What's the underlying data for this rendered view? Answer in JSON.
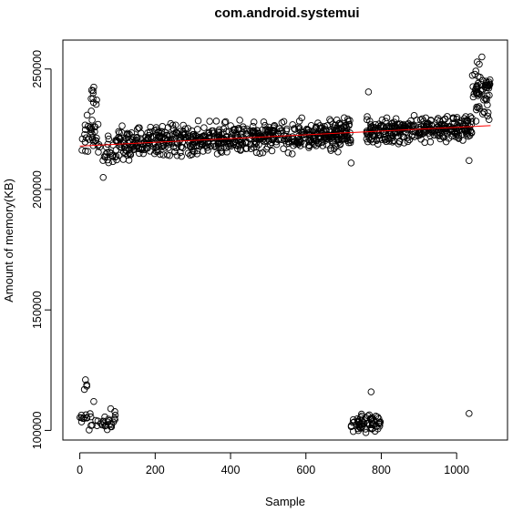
{
  "chart_data": {
    "type": "scatter",
    "title": "com.android.systemui",
    "xlabel": "Sample",
    "ylabel": "Amount of memory(KB)",
    "xlim": [
      -45,
      1135
    ],
    "ylim": [
      96000,
      262000
    ],
    "x_ticks": [
      0,
      200,
      400,
      600,
      800,
      1000
    ],
    "y_ticks": [
      100000,
      150000,
      200000,
      250000
    ],
    "grid": false,
    "point_color": "#000000",
    "trend_color": "#ff0000",
    "trend_line": {
      "x": [
        0,
        1090
      ],
      "y": [
        218000,
        226500
      ]
    },
    "clusters": [
      {
        "x_range": [
          0,
          60
        ],
        "y_center": 222000,
        "y_spread": 7000,
        "count": 34
      },
      {
        "x_range": [
          25,
          45
        ],
        "y_center": 237000,
        "y_spread": 5000,
        "count": 8
      },
      {
        "x_range": [
          0,
          95
        ],
        "y_center": 104000,
        "y_spread": 3000,
        "count": 38
      },
      {
        "x_range": [
          12,
          20
        ],
        "y_center": 119500,
        "y_spread": 2000,
        "count": 2
      },
      {
        "x_range": [
          60,
          95
        ],
        "y_center": 215000,
        "y_spread": 6000,
        "count": 18
      },
      {
        "x_range": [
          95,
          720
        ],
        "y_center": "trend",
        "y_spread": 5500,
        "count": 680
      },
      {
        "x_range": [
          720,
          800
        ],
        "y_center": 103000,
        "y_spread": 3000,
        "count": 60
      },
      {
        "x_range": [
          760,
          1040
        ],
        "y_center": "trend",
        "y_spread": 5000,
        "count": 300
      },
      {
        "x_range": [
          1040,
          1090
        ],
        "y_center": 240000,
        "y_spread": 8000,
        "count": 60
      }
    ],
    "extra_points": [
      {
        "x": 62,
        "y": 205000
      },
      {
        "x": 766,
        "y": 240500
      },
      {
        "x": 773,
        "y": 116000
      },
      {
        "x": 1033,
        "y": 107000
      },
      {
        "x": 1033,
        "y": 212000
      },
      {
        "x": 1067,
        "y": 255000
      },
      {
        "x": 1060,
        "y": 252000
      },
      {
        "x": 1073,
        "y": 232000
      },
      {
        "x": 1086,
        "y": 229000
      },
      {
        "x": 37,
        "y": 242500
      },
      {
        "x": 35,
        "y": 241000
      },
      {
        "x": 37,
        "y": 112000
      },
      {
        "x": 15,
        "y": 121000
      },
      {
        "x": 12,
        "y": 117000
      },
      {
        "x": 82,
        "y": 109000
      },
      {
        "x": 720,
        "y": 211000
      },
      {
        "x": 715,
        "y": 227000
      }
    ]
  }
}
